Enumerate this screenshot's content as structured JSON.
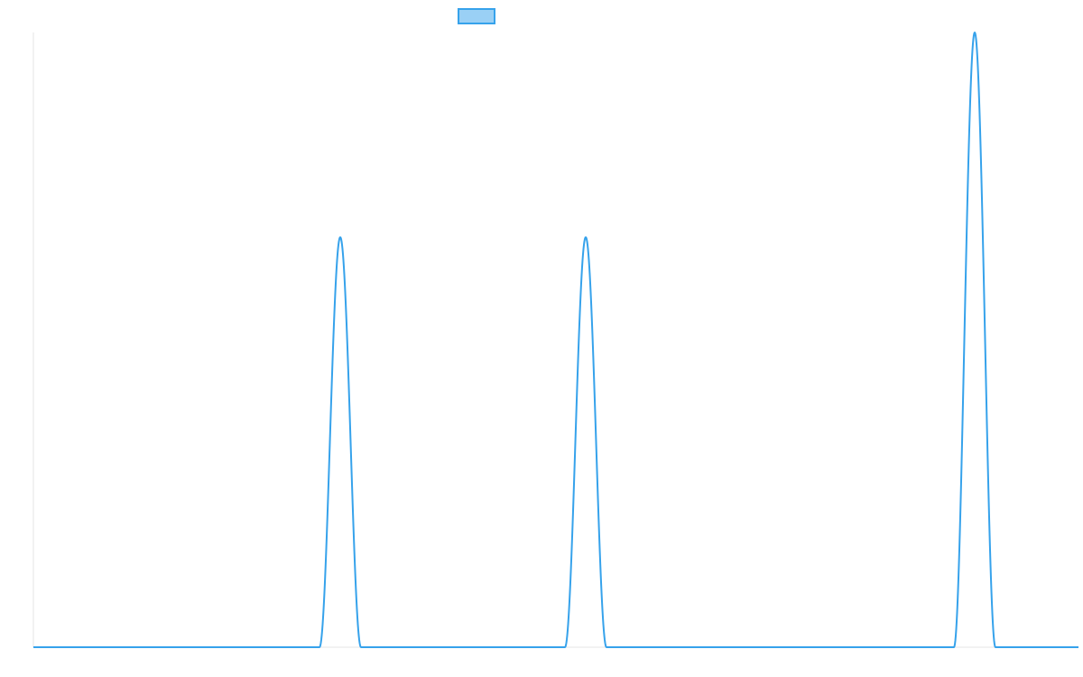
{
  "chart_data": {
    "type": "line",
    "title": "",
    "xlabel": "",
    "ylabel": "",
    "grid": false,
    "legend": {
      "position": "top-center",
      "entries": [
        {
          "name": "",
          "color": "#36a2eb",
          "fill": "#9ad0f5"
        }
      ]
    },
    "xlim": [
      0,
      1158
    ],
    "ylim": [
      0,
      1
    ],
    "series": [
      {
        "name": "",
        "color": "#36a2eb",
        "fill": "#9ad0f5",
        "baseline": 0,
        "peaks": [
          {
            "center": 340,
            "height": 0.667,
            "half_width": 23
          },
          {
            "center": 612,
            "height": 0.667,
            "half_width": 23
          },
          {
            "center": 1043,
            "height": 1.0,
            "half_width": 23
          }
        ]
      }
    ]
  }
}
